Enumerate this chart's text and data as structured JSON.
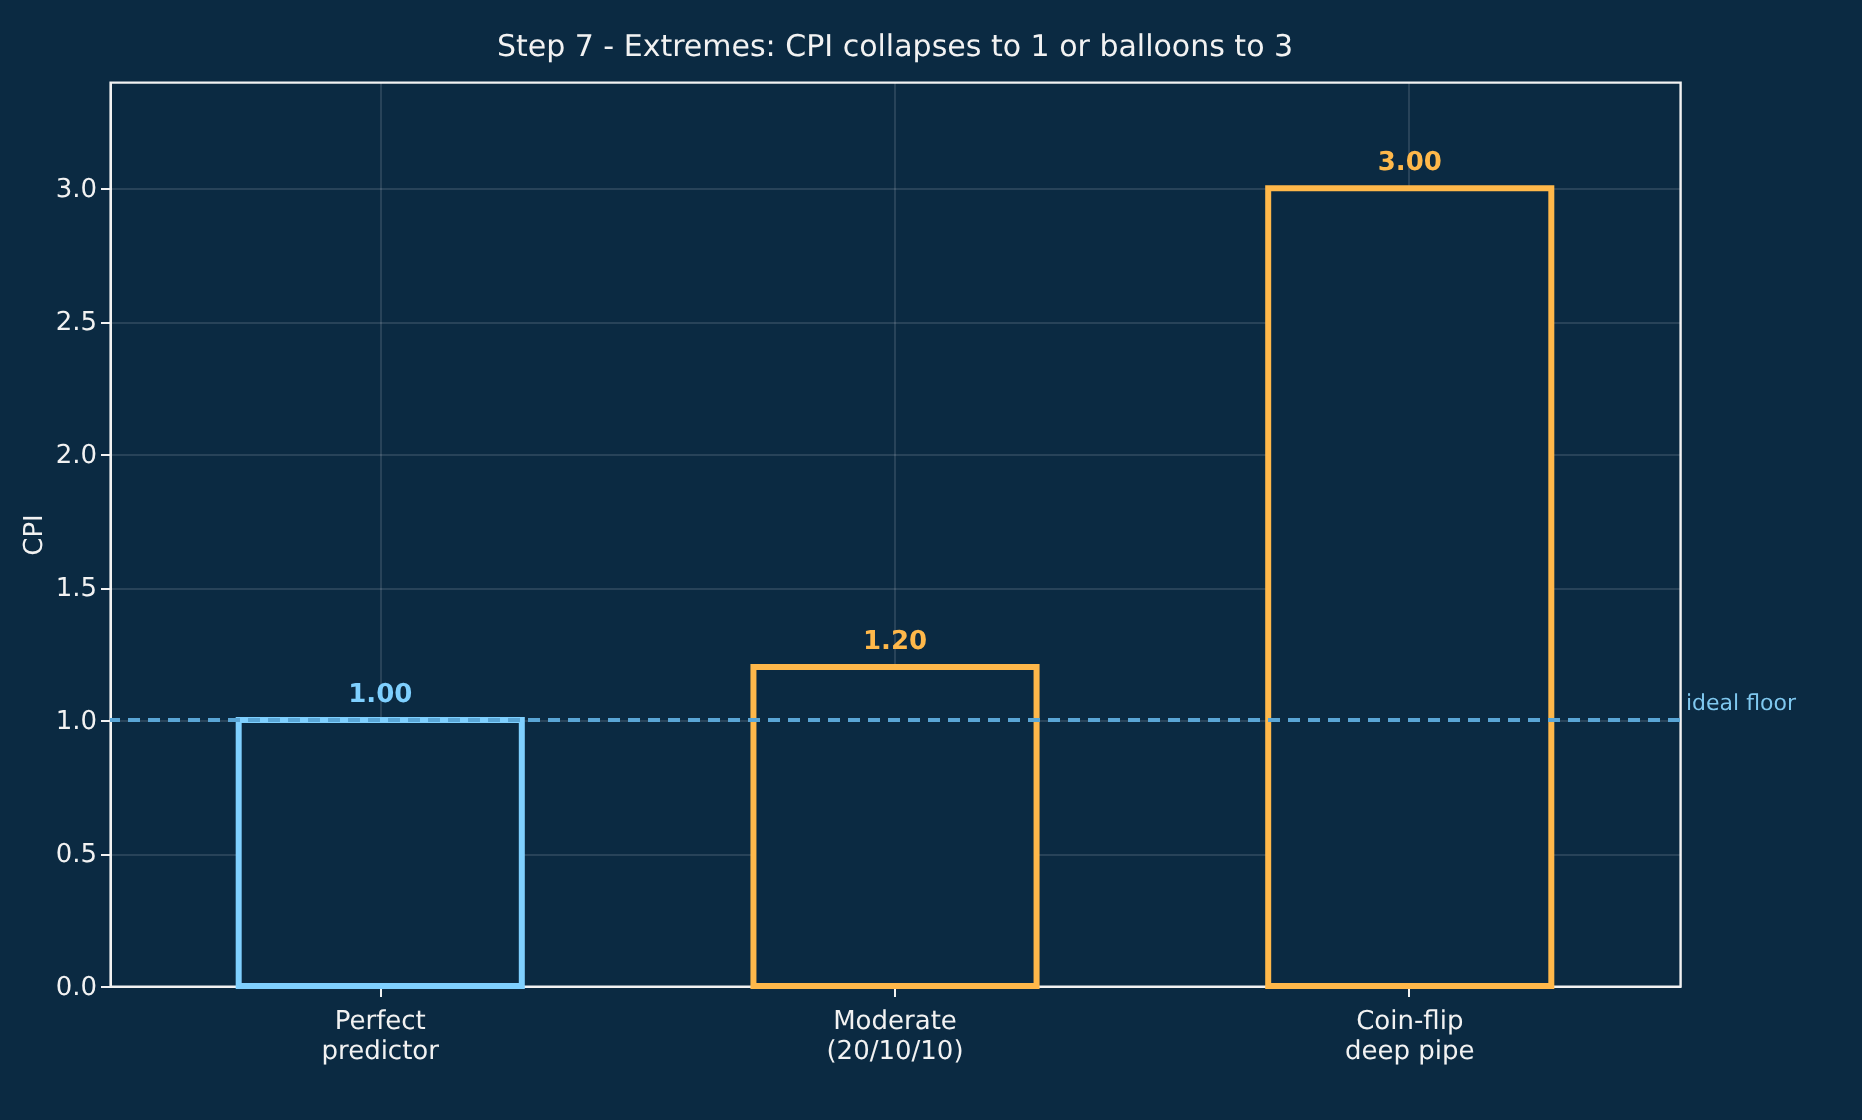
{
  "chart_data": {
    "type": "bar",
    "title": "Step 7 - Extremes: CPI collapses to 1 or balloons to 3",
    "ylabel": "CPI",
    "categories": [
      "Perfect\npredictor",
      "Moderate\n(20/10/10)",
      "Coin-flip\ndeep pipe"
    ],
    "values": [
      1.0,
      1.2,
      3.0
    ],
    "colors": [
      "#7fd0ff",
      "#ffb84a",
      "#ffb84a"
    ],
    "value_labels": [
      "1.00",
      "1.20",
      "3.00"
    ],
    "ylim": [
      0,
      3.4
    ],
    "yticks": [
      {
        "value": 0,
        "label": "0.0"
      },
      {
        "value": 0.5,
        "label": "0.5"
      },
      {
        "value": 1,
        "label": "1.0"
      },
      {
        "value": 1.5,
        "label": "1.5"
      },
      {
        "value": 2,
        "label": "2.0"
      },
      {
        "value": 2.5,
        "label": "2.5"
      },
      {
        "value": 3,
        "label": "3.0"
      }
    ],
    "ref_lines": [
      {
        "axis": "y",
        "value": 1,
        "label": "ideal floor",
        "color": "#5aa6d6",
        "line_style": "dashed"
      }
    ],
    "grid": true
  }
}
